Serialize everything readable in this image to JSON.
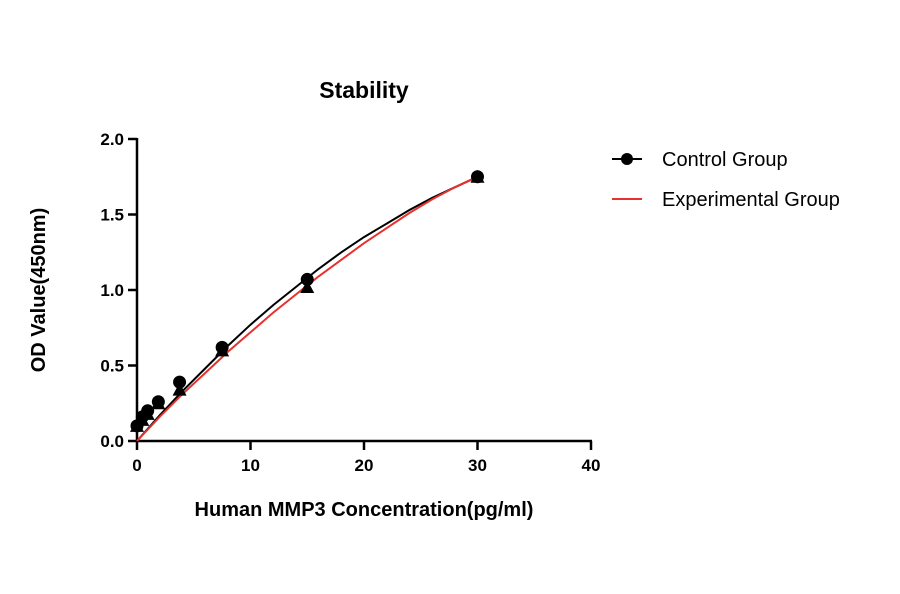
{
  "chart_data": {
    "type": "scatter",
    "title": "Stability",
    "xlabel": "Human MMP3 Concentration(pg/ml)",
    "ylabel": "OD Value(450nm)",
    "xlim": [
      0,
      40
    ],
    "ylim": [
      0,
      2.0
    ],
    "xticks": [
      "0",
      "10",
      "20",
      "30",
      "40"
    ],
    "yticks": [
      "0.0",
      "0.5",
      "1.0",
      "1.5",
      "2.0"
    ],
    "grid": false,
    "legend_position": "right",
    "series": [
      {
        "name": "Control Group",
        "marker": "circle",
        "color": "#000000",
        "x": [
          0,
          0.47,
          0.94,
          1.88,
          3.75,
          7.5,
          15,
          30
        ],
        "y": [
          0.1,
          0.16,
          0.2,
          0.26,
          0.39,
          0.62,
          1.07,
          1.75
        ],
        "fit": {
          "x": [
            0,
            2,
            4,
            6,
            8,
            10,
            12,
            14,
            16,
            18,
            20,
            22,
            24,
            26,
            28,
            30
          ],
          "y": [
            0.0,
            0.17,
            0.33,
            0.48,
            0.63,
            0.77,
            0.9,
            1.02,
            1.14,
            1.25,
            1.35,
            1.44,
            1.53,
            1.61,
            1.68,
            1.75
          ]
        }
      },
      {
        "name": "Experimental Group",
        "marker": "triangle",
        "color": "#e8312f",
        "x": [
          0,
          0.47,
          0.94,
          1.88,
          3.75,
          7.5,
          15,
          30
        ],
        "y": [
          0.1,
          0.14,
          0.18,
          0.25,
          0.34,
          0.6,
          1.02,
          1.75
        ],
        "fit": {
          "x": [
            0,
            2,
            4,
            6,
            8,
            10,
            12,
            14,
            16,
            18,
            20,
            22,
            24,
            26,
            28,
            30
          ],
          "y": [
            0.0,
            0.16,
            0.31,
            0.45,
            0.59,
            0.72,
            0.85,
            0.97,
            1.09,
            1.2,
            1.31,
            1.41,
            1.51,
            1.6,
            1.68,
            1.75
          ]
        }
      }
    ]
  }
}
